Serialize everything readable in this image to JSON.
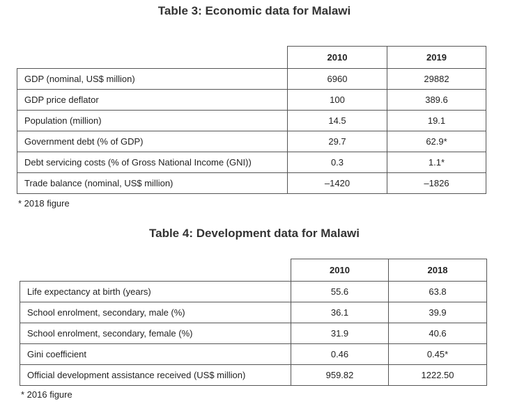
{
  "table3": {
    "title": "Table 3: Economic data for Malawi",
    "headers": [
      "2010",
      "2019"
    ],
    "rows": [
      {
        "label": "GDP (nominal, US$ million)",
        "v1": "6960",
        "v2": "29882"
      },
      {
        "label": "GDP price deflator",
        "v1": "100",
        "v2": "389.6"
      },
      {
        "label": "Population (million)",
        "v1": "14.5",
        "v2": "19.1"
      },
      {
        "label": "Government debt (% of GDP)",
        "v1": "29.7",
        "v2": "62.9*"
      },
      {
        "label": "Debt servicing costs (% of Gross National Income (GNI))",
        "v1": "0.3",
        "v2": "1.1*"
      },
      {
        "label": "Trade balance (nominal, US$ million)",
        "v1": "–1420",
        "v2": "–1826"
      }
    ],
    "footnote": "* 2018 figure"
  },
  "table4": {
    "title": "Table 4: Development data for Malawi",
    "headers": [
      "2010",
      "2018"
    ],
    "rows": [
      {
        "label": "Life expectancy at birth (years)",
        "v1": "55.6",
        "v2": "63.8"
      },
      {
        "label": "School enrolment, secondary, male (%)",
        "v1": "36.1",
        "v2": "39.9"
      },
      {
        "label": "School enrolment, secondary, female (%)",
        "v1": "31.9",
        "v2": "40.6"
      },
      {
        "label": "Gini coefficient",
        "v1": "0.46",
        "v2": "0.45*"
      },
      {
        "label": "Official development assistance received (US$ million)",
        "v1": "959.82",
        "v2": "1222.50"
      }
    ],
    "footnote": "* 2016 figure"
  }
}
